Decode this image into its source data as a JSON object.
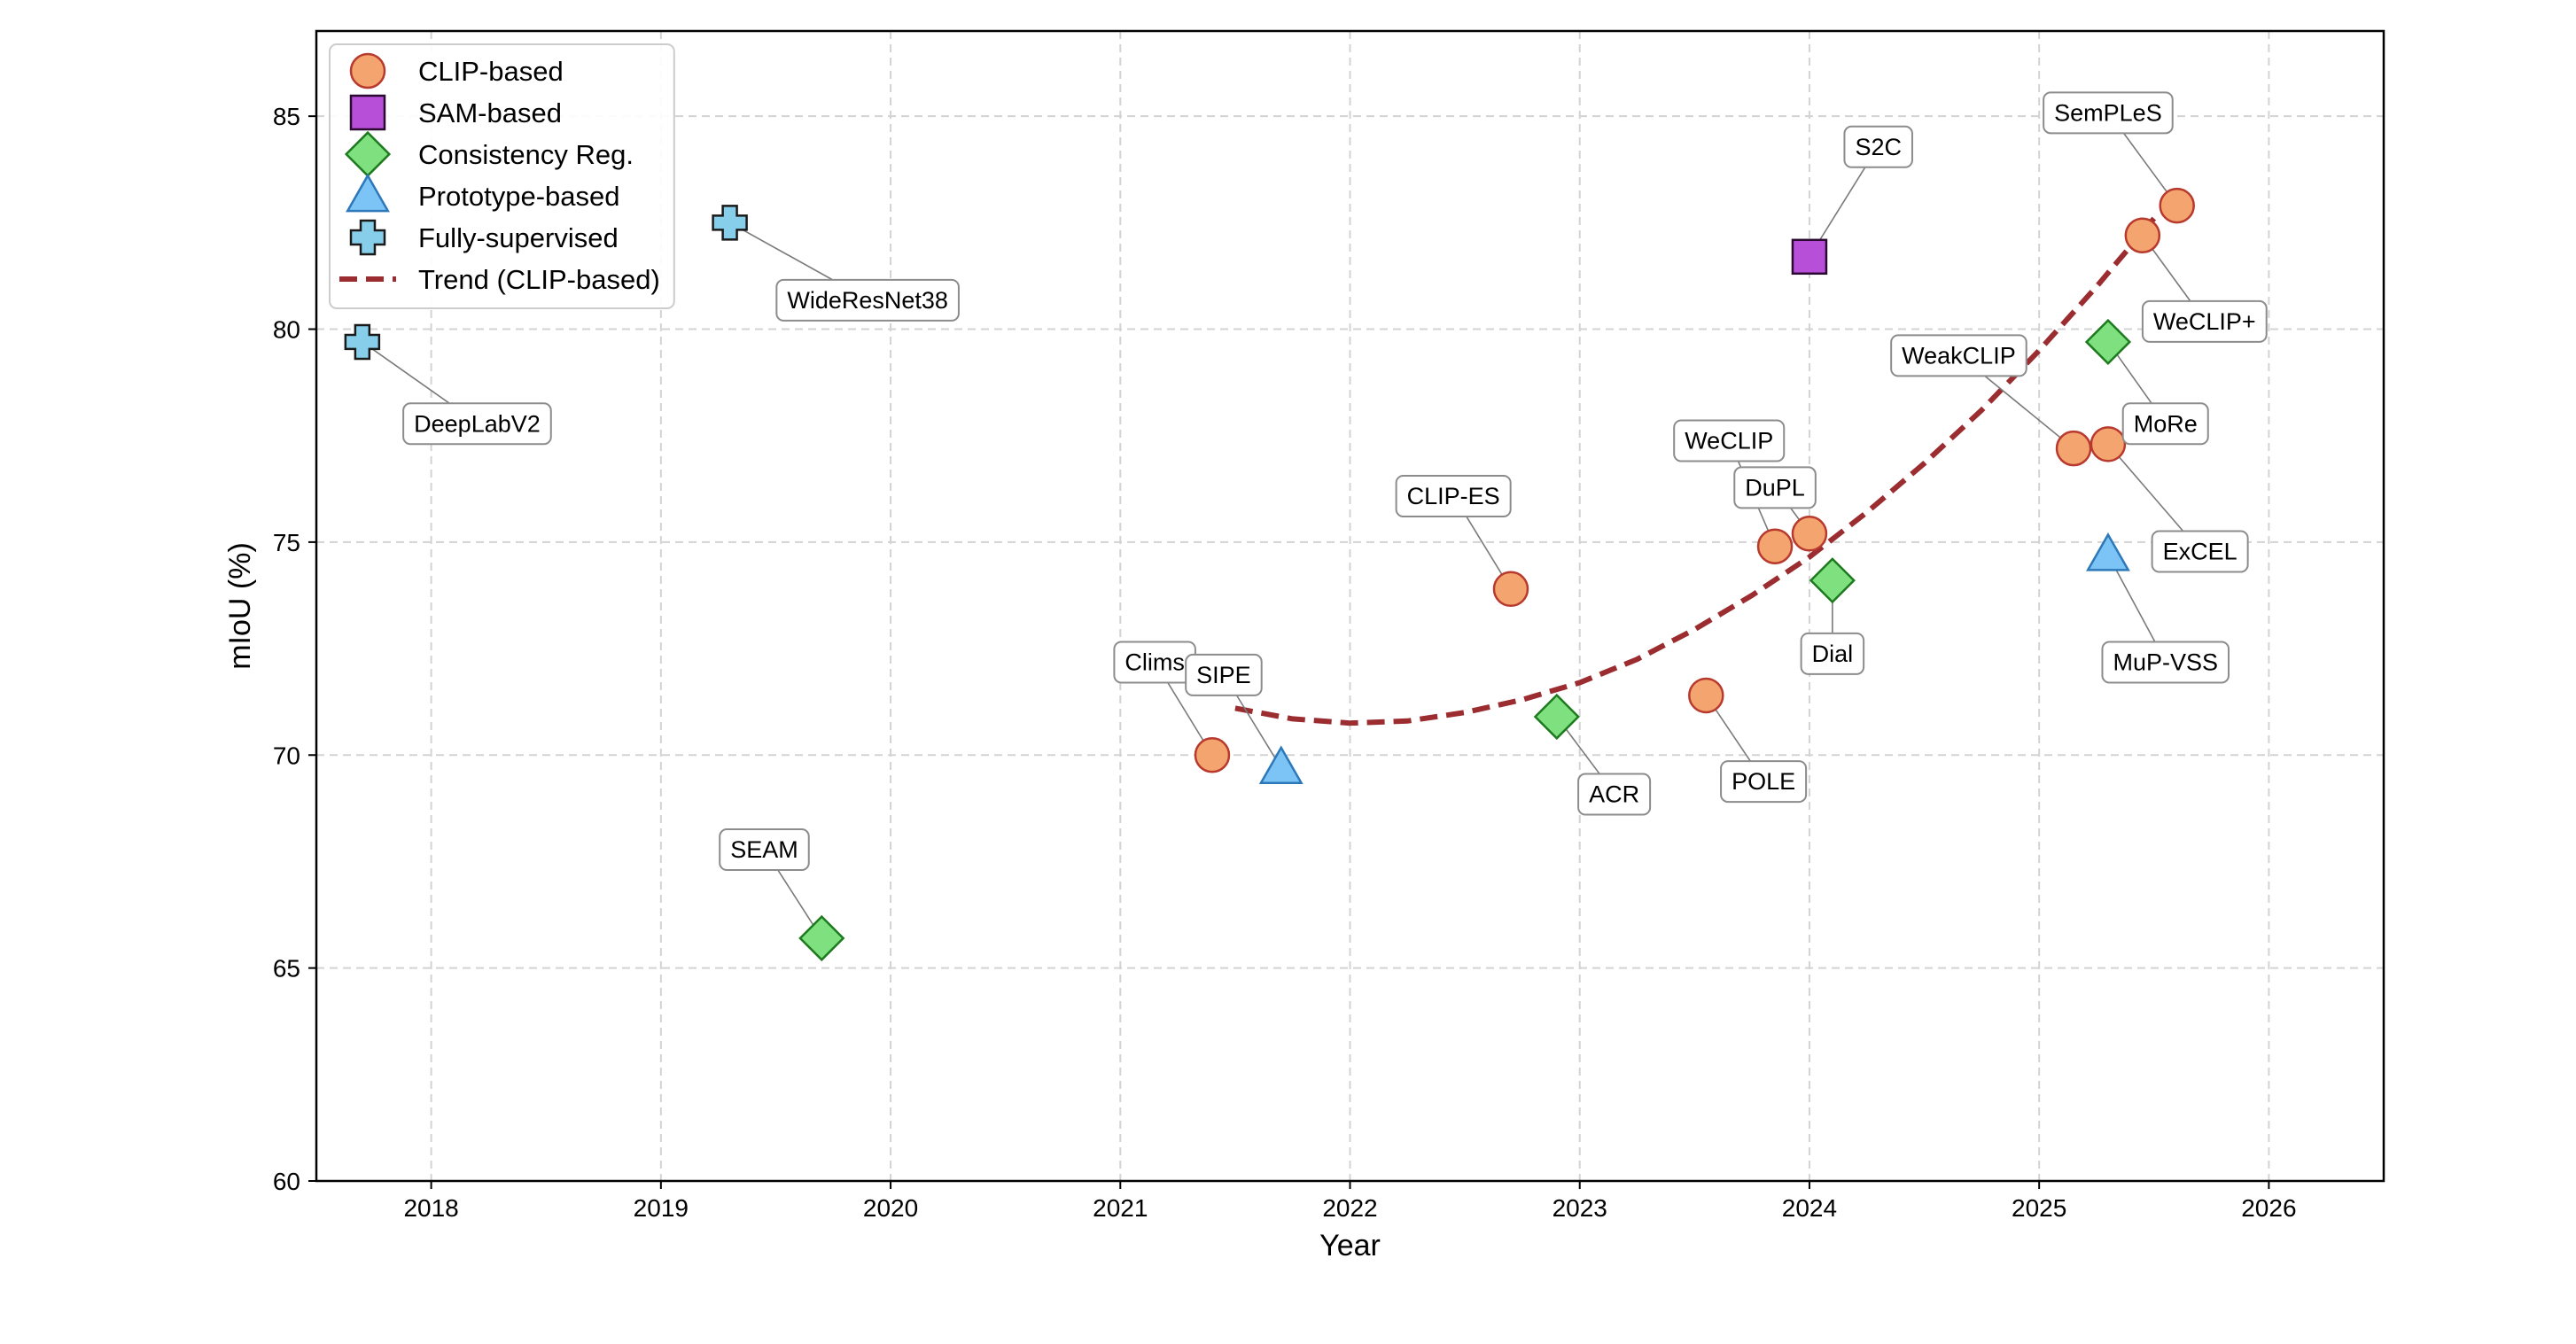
{
  "chart_data": {
    "type": "scatter",
    "title": "",
    "xlabel": "Year",
    "ylabel": "mIoU (%)",
    "xlim": [
      2017.5,
      2026.5
    ],
    "ylim": [
      60,
      87
    ],
    "xticks": [
      2018,
      2019,
      2020,
      2021,
      2022,
      2023,
      2024,
      2025,
      2026
    ],
    "yticks": [
      60,
      65,
      70,
      75,
      80,
      85
    ],
    "grid": true,
    "legend_position": "top-left",
    "colors": {
      "clip_fill": "#F4A46E",
      "clip_edge": "#B83A2E",
      "sam_fill": "#B84FD8",
      "sam_edge": "#2A0A30",
      "consistency_fill": "#7EE07E",
      "consistency_edge": "#1E7A1E",
      "prototype_fill": "#7CC4F6",
      "prototype_edge": "#2C78B8",
      "fully_fill": "#87CEEB",
      "fully_edge": "#1A1A1A",
      "trend": "#9B2D30",
      "grid": "#D3D3D3"
    },
    "series": [
      {
        "name": "CLIP-based",
        "marker": "circle",
        "points": [
          {
            "label": "Clims",
            "x": 2021.4,
            "y": 70.0,
            "label_x": 2021.15,
            "label_y": 72.2
          },
          {
            "label": "CLIP-ES",
            "x": 2022.7,
            "y": 73.9,
            "label_x": 2022.45,
            "label_y": 76.1
          },
          {
            "label": "POLE",
            "x": 2023.55,
            "y": 71.4,
            "label_x": 2023.8,
            "label_y": 69.4
          },
          {
            "label": "WeCLIP",
            "x": 2023.85,
            "y": 74.9,
            "label_x": 2023.65,
            "label_y": 77.4
          },
          {
            "label": "DuPL",
            "x": 2024.0,
            "y": 75.2,
            "label_x": 2023.85,
            "label_y": 76.3
          },
          {
            "label": "WeakCLIP",
            "x": 2025.15,
            "y": 77.2,
            "label_x": 2024.65,
            "label_y": 79.4
          },
          {
            "label": "ExCEL",
            "x": 2025.3,
            "y": 77.3,
            "label_x": 2025.7,
            "label_y": 74.8
          },
          {
            "label": "WeCLIP+",
            "x": 2025.45,
            "y": 82.2,
            "label_x": 2025.72,
            "label_y": 80.2
          },
          {
            "label": "SemPLeS",
            "x": 2025.6,
            "y": 82.9,
            "label_x": 2025.3,
            "label_y": 85.1
          }
        ]
      },
      {
        "name": "SAM-based",
        "marker": "square",
        "points": [
          {
            "label": "S2C",
            "x": 2024.0,
            "y": 81.7,
            "label_x": 2024.3,
            "label_y": 84.3
          }
        ]
      },
      {
        "name": "Consistency Reg.",
        "marker": "diamond",
        "points": [
          {
            "label": "SEAM",
            "x": 2019.7,
            "y": 65.7,
            "label_x": 2019.45,
            "label_y": 67.8
          },
          {
            "label": "ACR",
            "x": 2022.9,
            "y": 70.9,
            "label_x": 2023.15,
            "label_y": 69.1
          },
          {
            "label": "Dial",
            "x": 2024.1,
            "y": 74.1,
            "label_x": 2024.1,
            "label_y": 72.4
          },
          {
            "label": "MoRe",
            "x": 2025.3,
            "y": 79.7,
            "label_x": 2025.55,
            "label_y": 77.8
          }
        ]
      },
      {
        "name": "Prototype-based",
        "marker": "triangle",
        "points": [
          {
            "label": "SIPE",
            "x": 2021.7,
            "y": 69.7,
            "label_x": 2021.45,
            "label_y": 71.9
          },
          {
            "label": "MuP-VSS",
            "x": 2025.3,
            "y": 74.7,
            "label_x": 2025.55,
            "label_y": 72.2
          }
        ]
      },
      {
        "name": "Fully-supervised",
        "marker": "plus",
        "points": [
          {
            "label": "DeepLabV2",
            "x": 2017.7,
            "y": 79.7,
            "label_x": 2018.2,
            "label_y": 77.8
          },
          {
            "label": "WideResNet38",
            "x": 2019.3,
            "y": 82.5,
            "label_x": 2019.9,
            "label_y": 80.7
          }
        ]
      }
    ],
    "trend": {
      "name": "Trend (CLIP-based)",
      "style": "dashed",
      "x": [
        2021.5,
        2021.75,
        2022.0,
        2022.25,
        2022.5,
        2022.75,
        2023.0,
        2023.25,
        2023.5,
        2023.75,
        2024.0,
        2024.25,
        2024.5,
        2024.75,
        2025.0,
        2025.25,
        2025.5
      ],
      "y": [
        71.1,
        70.85,
        70.75,
        70.8,
        71.0,
        71.3,
        71.7,
        72.25,
        72.95,
        73.75,
        74.65,
        75.7,
        76.85,
        78.1,
        79.5,
        81.0,
        82.6
      ]
    }
  }
}
